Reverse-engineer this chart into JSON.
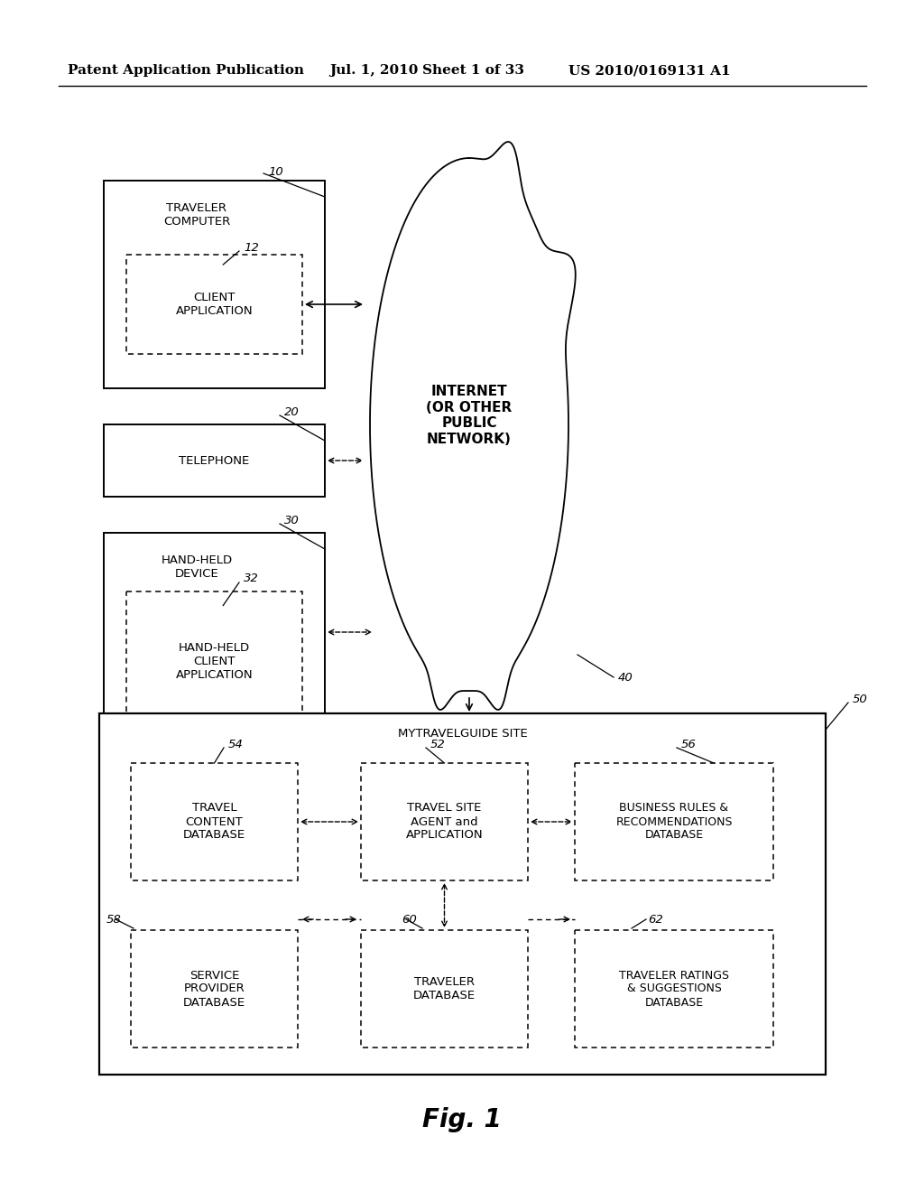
{
  "background_color": "#ffffff",
  "header_text": "Patent Application Publication",
  "header_date": "Jul. 1, 2010",
  "header_sheet": "Sheet 1 of 33",
  "header_patent": "US 2010/0169131 A1",
  "fig_label": "Fig. 1"
}
